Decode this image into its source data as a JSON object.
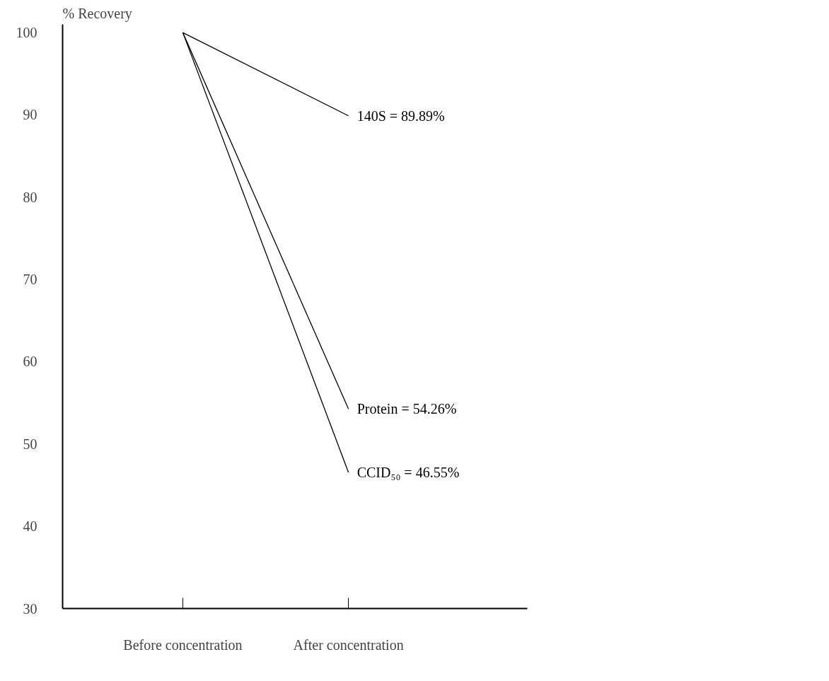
{
  "chart_data": {
    "type": "line",
    "ylabel": "% Recovery",
    "categories": [
      "Before concentration",
      "After concentration"
    ],
    "series": [
      {
        "color": "#000000",
        "values": [
          100,
          89.89
        ]
      },
      {
        "color": "#000000",
        "values": [
          100,
          54.26
        ]
      },
      {
        "color": "#000000",
        "values": [
          100,
          46.55
        ]
      }
    ],
    "annotations": [
      "140S = 89.89%",
      "Protein = 54.26%",
      "CCID₅₀ = 46.55%"
    ],
    "ylim": [
      30,
      101
    ],
    "yticks": [
      30,
      40,
      50,
      60,
      70,
      80,
      90,
      100
    ],
    "grid": false,
    "marker": "none",
    "line_style": "solid"
  }
}
